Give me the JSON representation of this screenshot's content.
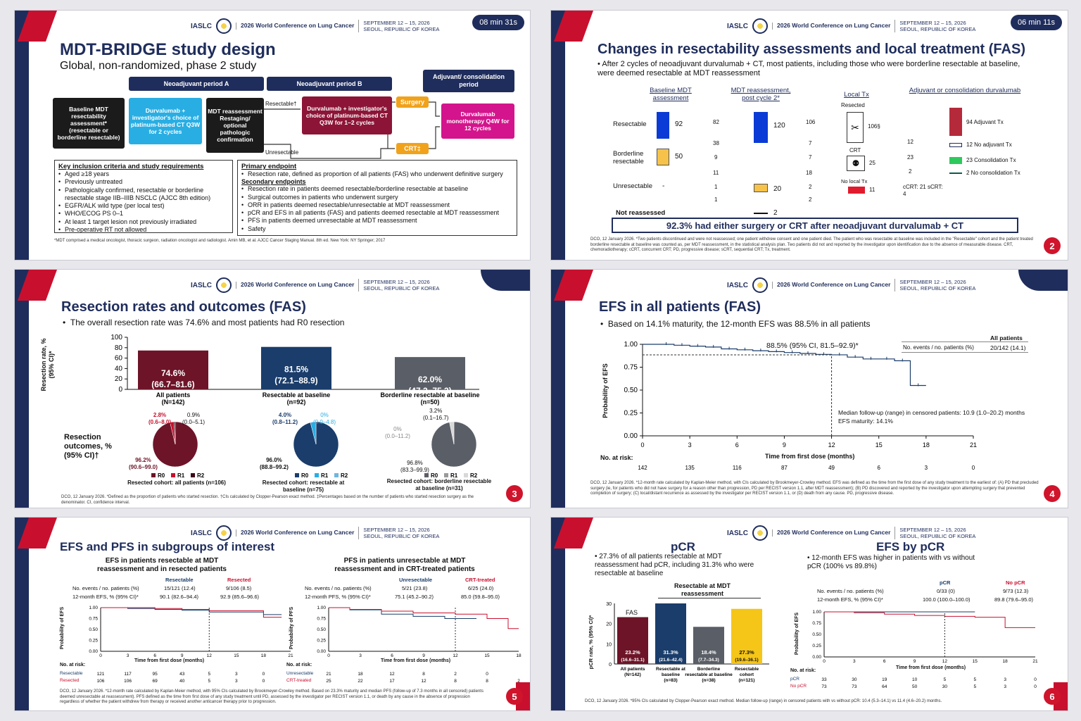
{
  "header": {
    "iaslc": "IASLC",
    "conference": "2026 World Conference on Lung Cancer",
    "dates": "SEPTEMBER 12 – 15, 2026",
    "location": "SEOUL, REPUBLIC OF KOREA"
  },
  "slide1": {
    "timer": "08 min 31s",
    "title": "MDT-BRIDGE study design",
    "subtitle": "Global, non-randomized, phase 2 study",
    "period_a": "Neoadjuvant period A",
    "period_b": "Neoadjuvant period B",
    "period_adj": "Adjuvant/ consolidation period",
    "baseline": "Baseline MDT resectability assessment* (resectable or borderline resectable)",
    "durva_a": "Durvalumab + investigator's choice of platinum-based CT Q3W for 2 cycles",
    "mdt": "MDT reassessment Restaging/ optional pathologic confirmation",
    "resectable": "Resectable†",
    "unresectable": "Unresectable",
    "durva_b": "Durvalumab + investigator's choice of platinum-based CT Q3W for 1–2 cycles",
    "surgery": "Surgery",
    "crt": "CRT‡",
    "mono": "Durvalumab monotherapy Q4W for 12 cycles",
    "incl_title": "Key inclusion criteria and study requirements",
    "incl": [
      "Aged ≥18 years",
      "Previously untreated",
      "Pathologically confirmed, resectable or borderline resectable stage IIB–IIIB NSCLC (AJCC 8th edition)",
      "EGFR/ALK wild type (per local test)",
      "WHO/ECOG PS 0–1",
      "At least 1 target lesion not previously irradiated",
      "Pre-operative RT not allowed"
    ],
    "primary_title": "Primary endpoint",
    "primary": [
      "Resection rate, defined as proportion of all patients (FAS) who underwent definitive surgery"
    ],
    "secondary_title": "Secondary endpoints",
    "secondary": [
      "Resection rate in patients deemed resectable/borderline resectable at baseline",
      "Surgical outcomes in patients who underwent surgery",
      "ORR in patients deemed resectable/unresectable at MDT reassessment",
      "pCR and EFS in all patients (FAS) and patients deemed resectable at MDT reassessment",
      "PFS in patients deemed unresectable at MDT reassessment",
      "Safety"
    ],
    "footnote": "*MDT comprised a medical oncologist, thoracic surgeon, radiation oncologist and radiologist. Amin MB, et al. AJCC Cancer Staging Manual. 8th ed. New York: NY Springer; 2017"
  },
  "slide2": {
    "timer": "06 min 11s",
    "title": "Changes in resectability assessments and local treatment (FAS)",
    "bullet": "After 2 cycles of neoadjuvant durvalumab + CT, most patients, including those who were borderline resectable at baseline, were deemed resectable at MDT reassessment",
    "col1": "Baseline MDT assessment",
    "col2": "MDT reassessment, post cycle 2*",
    "col3": "Local Tx",
    "col4": "Adjuvant or consolidation durvalumab",
    "rows": [
      "Resectable",
      "Borderline resectable",
      "Unresectable",
      "Not reassessed"
    ],
    "base_vals": [
      "92",
      "50",
      "-"
    ],
    "mid_left": [
      "82",
      "38",
      "9",
      "11",
      "1",
      "1"
    ],
    "mdt_vals": [
      "120",
      "20",
      "2"
    ],
    "mid_right": [
      "106",
      "7",
      "7",
      "18",
      "2",
      "2"
    ],
    "resected": "Resected",
    "resected_n": "106§",
    "crt_label": "CRT",
    "crt_n": "25",
    "nolocal": "No local Tx",
    "nolocal_n": "11",
    "adj_nums": [
      "12",
      "23",
      "2"
    ],
    "crt_split": "cCRT: 21 sCRT: 4",
    "legend": [
      "94 Adjuvant Tx",
      "12 No adjuvant Tx",
      "23 Consolidation Tx",
      "2 No consolidation Tx"
    ],
    "banner": "92.3% had either surgery or CRT after neoadjuvant durvalumab + CT",
    "footnote": "DCO, 12 January 2026. *Two patients discontinued and were not reassessed; one patient withdrew consent and one patient died. The patient who was resectable at baseline was included in the \"Resectable\" cohort and the patient treated borderline resectable at baseline was counted as, per MDT reassessment, in the statistical analysis plan. Two patients did not and reported by the investigator upon identification due to the absence of measurable disease. CRT, chemoradiotherapy; cCRT, concurrent CRT; PD, progressive disease; sCRT, sequential CRT; Tx, treatment."
  },
  "slide3": {
    "title": "Resection rates and outcomes (FAS)",
    "bullet": "The overall resection rate was 74.6% and most patients had R0 resection",
    "ylabel": "Resection rate, % (95% CI)*",
    "outcomes_label": "Resection outcomes, % (95% CI)†",
    "pies": [
      {
        "r0": "96.2%",
        "r0ci": "(90.6–99.0)",
        "r1": "2.8%",
        "r1ci": "(0.6–8.0)",
        "r2": "0.9%",
        "r2ci": "(0.0–5.1)",
        "caption": "Resected cohort: all patients (n=106)"
      },
      {
        "r0": "96.0%",
        "r0ci": "(88.8–99.2)",
        "r1": "4.0%",
        "r1ci": "(0.8–11.2)",
        "r2": "0%",
        "r2ci": "(0.0–4.8)",
        "caption": "Resected cohort: resectable at baseline (n=75)"
      },
      {
        "r0": "96.8%",
        "r0ci": "(83.3–99.9)",
        "r1": "0%",
        "r1ci": "(0.0–11.2)",
        "r2": "3.2%",
        "r2ci": "(0.1–16.7)",
        "caption": "Resected cohort: borderline resectable at baseline (n=31)"
      }
    ],
    "legend": [
      "R0",
      "R1",
      "R2"
    ],
    "footnote": "DCO, 12 January 2026. *Defined as the proportion of patients who started resection. †CIs calculated by Clopper-Pearson exact method. ‡Percentages based on the number of patients who started resection surgery as the denominator. CI, confidence interval."
  },
  "slide4": {
    "title": "EFS in all patients (FAS)",
    "bullet": "Based on 14.1% maturity, the 12-month EFS was 88.5% in all patients",
    "annotation": "88.5% (95% CI, 81.5–92.9)*",
    "table_head": "All patients",
    "table_row_label": "No. events / no. patients (%)",
    "table_row_val": "20/142 (14.1)",
    "followup": "Median follow-up (range) in censored patients: 10.9 (1.0–20.2) months",
    "maturity": "EFS maturity: 14.1%",
    "ylabel": "Probability of EFS",
    "xlabel": "Time from first dose (months)",
    "at_risk_label": "No. at risk:",
    "at_risk": [
      "142",
      "135",
      "116",
      "87",
      "49",
      "6",
      "3",
      "0"
    ],
    "footnote": "DCO, 12 January 2026. *12-month rate calculated by Kaplan-Meier method, with CIs calculated by Brookmeyer-Crowley method. EFS was defined as the time from the first dose of any study treatment to the earliest of: (A) PD that precluded surgery (ie, for patients who did not have surgery for a reason other than progression, PD per RECIST version 1.1, after MDT reassessment); (B) PD discovered and reported by the investigator upon attempting surgery that prevented completion of surgery; (C) local/distant recurrence as assessed by the investigator per RECIST version 1.1, or (D) death from any cause. PD, progressive disease."
  },
  "slide5": {
    "title": "EFS and PFS in subgroups of interest",
    "left_title": "EFS in patients resectable at MDT reassessment and in resected patients",
    "left_cols": [
      "Resectable",
      "Resected"
    ],
    "left_rows": [
      [
        "No. events / no. patients (%)",
        "15/121 (12.4)",
        "9/106 (8.5)"
      ],
      [
        "12-month EFS, % (95% CI)*",
        "90.1 (82.6–94.4)",
        "92.9 (85.6–96.6)"
      ]
    ],
    "left_ylabel": "Probability of EFS",
    "left_risk_names": [
      "Resectable",
      "Resected"
    ],
    "left_risk": [
      [
        "121",
        "117",
        "95",
        "43",
        "5",
        "3",
        "0"
      ],
      [
        "106",
        "106",
        "69",
        "40",
        "5",
        "3",
        "0"
      ]
    ],
    "right_title": "PFS in patients unresectable at MDT reassessment and in CRT-treated patients",
    "right_cols": [
      "Unresectable",
      "CRT-treated"
    ],
    "right_rows": [
      [
        "No. events / no. patients (%)",
        "5/21 (23.8)",
        "6/25 (24.0)"
      ],
      [
        "12-month PFS, % (95% CI)*",
        "75.1 (45.2–90.2)",
        "85.0 (59.8–95.0)"
      ]
    ],
    "right_ylabel": "Probability of PFS",
    "right_risk_names": [
      "Unresectable",
      "CRT-treated"
    ],
    "right_risk": [
      [
        "21",
        "18",
        "12",
        "8",
        "2",
        "0"
      ],
      [
        "25",
        "22",
        "17",
        "12",
        "8",
        "8",
        "2",
        "0"
      ]
    ],
    "xlabel": "Time from first dose (months)",
    "at_risk_label": "No. at risk:",
    "footnote": "DCO, 12 January 2026. *12-month rate calculated by Kaplan-Meier method, with 95% CIs calculated by Brookmeyer-Crowley method. Based on 23.3% maturity and median PFS (follow-up of 7.3 months in all censored) patients deemed unresectable at reassessment). PFS defined as the time from first dose of any study treatment until PD, assessed by the investigator per RECIST version 1.1, or death by any cause in the absence of progression regardless of whether the patient withdrew from therapy or received another anticancer therapy prior to progression."
  },
  "slide6": {
    "pcr_title": "pCR",
    "pcr_bullet": "27.3% of all patients resectable at MDT reassessment had pCR, including 31.3% who were resectable at baseline",
    "bar_group_label": "Resectable at MDT reassessment",
    "fas_label": "FAS",
    "ylabel": "pCR rate, % (95% CI)*",
    "bars": [
      {
        "val": "23.2%",
        "ci": "(16.6–31.1)",
        "label": "All patients (N=142)"
      },
      {
        "val": "31.3%",
        "ci": "(21.6–42.4)",
        "label": "Resectable at baseline (n=83)"
      },
      {
        "val": "18.4%",
        "ci": "(7.7–34.3)",
        "label": "Borderline resectable at baseline (n=38)"
      },
      {
        "val": "27.3%",
        "ci": "(19.6–36.1)",
        "label": "Resectable cohort (n=121)"
      }
    ],
    "efs_title": "EFS by pCR",
    "efs_bullet": "12-month EFS was higher in patients with vs without pCR (100% vs 89.8%)",
    "efs_cols": [
      "pCR",
      "No pCR"
    ],
    "efs_rows": [
      [
        "No. events / no. patients (%)",
        "0/33 (0)",
        "9/73 (12.3)"
      ],
      [
        "12-month EFS, % (95% CI)*",
        "100.0 (100.0–100.0)",
        "89.8 (79.6–95.0)"
      ]
    ],
    "ylabel2": "Probability of EFS",
    "xlabel": "Time from first dose (months)",
    "at_risk_label": "No. at risk:",
    "risk_names": [
      "pCR",
      "No pCR"
    ],
    "risk": [
      [
        "33",
        "30",
        "19",
        "10",
        "5",
        "5",
        "3",
        "0"
      ],
      [
        "73",
        "73",
        "64",
        "50",
        "30",
        "5",
        "3",
        "0"
      ]
    ],
    "footnote": "DCO, 12 January 2026. *95% CIs calculated by Clopper-Pearson exact method. Median follow-up (range) in censored patients with vs without pCR: 10.4 (5.3–14.1) vs 11.4 (4.6–20.2) months."
  },
  "chart_data": [
    {
      "type": "bar",
      "title": "Resection rates and outcomes (FAS)",
      "ylabel": "Resection rate, % (95% CI)*",
      "ylim": [
        0,
        100
      ],
      "categories": [
        "All patients (N=142)",
        "Resectable at baseline (n=92)",
        "Borderline resectable at baseline (n=50)"
      ],
      "values": [
        74.6,
        81.5,
        62.0
      ],
      "labels": [
        "74.6% (66.7–81.6)",
        "81.5% (72.1–88.9)",
        "62.0% (47.2–75.3)"
      ],
      "colors": [
        "#6e1428",
        "#1a3d6b",
        "#5a5e66"
      ]
    },
    {
      "type": "pie",
      "caption": "Resected cohort: all patients (n=106)",
      "categories": [
        "R0",
        "R1",
        "R2"
      ],
      "values": [
        96.2,
        2.8,
        0.9
      ]
    },
    {
      "type": "pie",
      "caption": "Resected cohort: resectable at baseline (n=75)",
      "categories": [
        "R0",
        "R1",
        "R2"
      ],
      "values": [
        96.0,
        4.0,
        0
      ]
    },
    {
      "type": "pie",
      "caption": "Resected cohort: borderline resectable at baseline (n=31)",
      "categories": [
        "R0",
        "R1",
        "R2"
      ],
      "values": [
        96.8,
        0,
        3.2
      ]
    },
    {
      "type": "line",
      "title": "EFS in all patients (FAS)",
      "xlabel": "Time from first dose (months)",
      "ylabel": "Probability of EFS",
      "xlim": [
        0,
        21
      ],
      "ylim": [
        0,
        1
      ],
      "series": [
        {
          "name": "All patients",
          "x": [
            0,
            1,
            2,
            3,
            4,
            5,
            6,
            7,
            8,
            9,
            10,
            11,
            12,
            13,
            14,
            15,
            16,
            17,
            18
          ],
          "y": [
            1,
            1,
            0.99,
            0.98,
            0.97,
            0.95,
            0.94,
            0.93,
            0.92,
            0.91,
            0.9,
            0.89,
            0.885,
            0.86,
            0.84,
            0.84,
            0.82,
            0.55,
            0.55
          ]
        }
      ]
    },
    {
      "type": "bar",
      "title": "pCR",
      "ylabel": "pCR rate, % (95% CI)*",
      "ylim": [
        0,
        30
      ],
      "categories": [
        "All patients (N=142)",
        "Resectable at baseline (n=83)",
        "Borderline resectable at baseline (n=38)",
        "Resectable cohort (n=121)"
      ],
      "values": [
        23.2,
        31.3,
        18.4,
        27.3
      ],
      "colors": [
        "#6e1428",
        "#1a3d6b",
        "#5a5e66",
        "#f5c518"
      ]
    }
  ]
}
